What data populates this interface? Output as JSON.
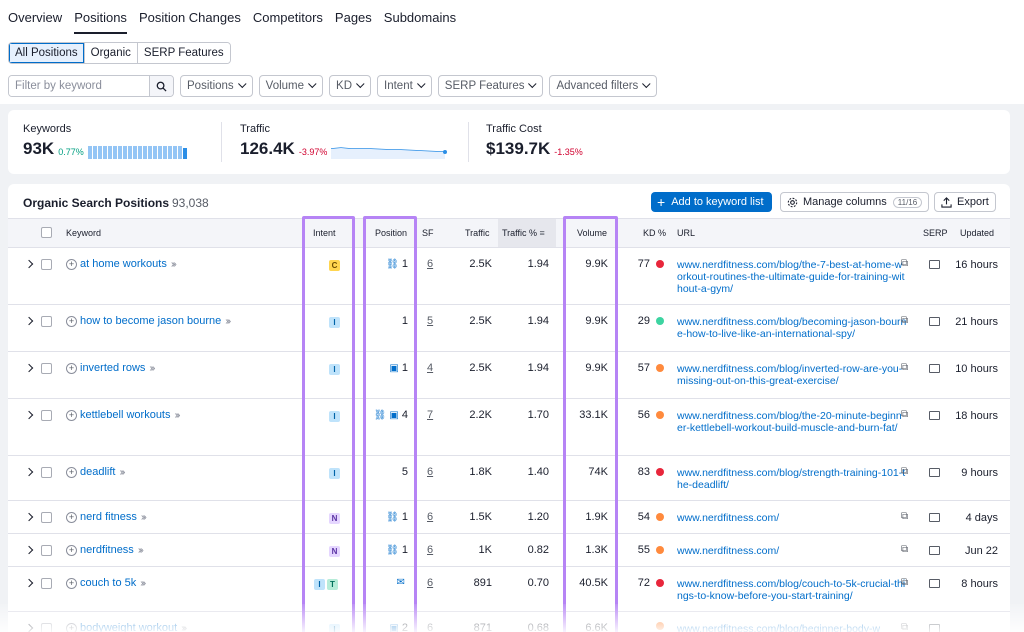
{
  "nav": {
    "tabs": [
      "Overview",
      "Positions",
      "Position Changes",
      "Competitors",
      "Pages",
      "Subdomains"
    ],
    "active": "Positions"
  },
  "segments": [
    "All Positions",
    "Organic",
    "SERP Features"
  ],
  "filters": {
    "search_placeholder": "Filter by keyword",
    "dropdowns": [
      "Positions",
      "Volume",
      "KD",
      "Intent",
      "SERP Features",
      "Advanced filters"
    ]
  },
  "kpis": {
    "keywords": {
      "label": "Keywords",
      "value": "93K",
      "delta": "0.77%"
    },
    "traffic": {
      "label": "Traffic",
      "value": "126.4K",
      "delta": "-3.97%"
    },
    "traffic_cost": {
      "label": "Traffic Cost",
      "value": "$139.7K",
      "delta": "-1.35%"
    }
  },
  "table": {
    "title": "Organic Search Positions",
    "count": "93,038",
    "add_button": "Add to keyword list",
    "manage_button": "Manage columns",
    "manage_count": "11/16",
    "export_button": "Export",
    "columns": {
      "keyword": "Keyword",
      "intent": "Intent",
      "position": "Position",
      "sf": "SF",
      "traffic": "Traffic",
      "traffic_pct": "Traffic %",
      "volume": "Volume",
      "kd": "KD %",
      "url": "URL",
      "serp": "SERP",
      "updated": "Updated"
    },
    "rows": [
      {
        "keyword": "at home workouts",
        "intent": [
          "C"
        ],
        "pos_icons": [
          "link"
        ],
        "position": "1",
        "sf": "6",
        "traffic": "2.5K",
        "traffic_pct": "1.94",
        "volume": "9.9K",
        "kd": "77",
        "kd_color": "#e8263b",
        "url": "www.nerdfitness.com/blog/the-7-best-at-home-workout-routines-the-ultimate-guide-for-training-without-a-gym/",
        "updated": "16 hours"
      },
      {
        "keyword": "how to become jason bourne",
        "intent": [
          "I"
        ],
        "pos_icons": [],
        "position": "1",
        "sf": "5",
        "traffic": "2.5K",
        "traffic_pct": "1.94",
        "volume": "9.9K",
        "kd": "29",
        "kd_color": "#3dd4a1",
        "url": "www.nerdfitness.com/blog/becoming-jason-bourne-how-to-live-like-an-international-spy/",
        "updated": "21 hours"
      },
      {
        "keyword": "inverted rows",
        "intent": [
          "I"
        ],
        "pos_icons": [
          "image"
        ],
        "position": "1",
        "sf": "4",
        "traffic": "2.5K",
        "traffic_pct": "1.94",
        "volume": "9.9K",
        "kd": "57",
        "kd_color": "#ff8a3d",
        "url": "www.nerdfitness.com/blog/inverted-row-are-you-missing-out-on-this-great-exercise/",
        "updated": "10 hours"
      },
      {
        "keyword": "kettlebell workouts",
        "intent": [
          "I"
        ],
        "pos_icons": [
          "link",
          "image"
        ],
        "position": "4",
        "sf": "7",
        "traffic": "2.2K",
        "traffic_pct": "1.70",
        "volume": "33.1K",
        "kd": "56",
        "kd_color": "#ff8a3d",
        "url": "www.nerdfitness.com/blog/the-20-minute-beginner-kettlebell-workout-build-muscle-and-burn-fat/",
        "updated": "18 hours"
      },
      {
        "keyword": "deadlift",
        "intent": [
          "I"
        ],
        "pos_icons": [],
        "position": "5",
        "sf": "6",
        "traffic": "1.8K",
        "traffic_pct": "1.40",
        "volume": "74K",
        "kd": "83",
        "kd_color": "#e8263b",
        "url": "www.nerdfitness.com/blog/strength-training-101-the-deadlift/",
        "updated": "9 hours"
      },
      {
        "keyword": "nerd fitness",
        "intent": [
          "N"
        ],
        "pos_icons": [
          "link"
        ],
        "position": "1",
        "sf": "6",
        "traffic": "1.5K",
        "traffic_pct": "1.20",
        "volume": "1.9K",
        "kd": "54",
        "kd_color": "#ff8a3d",
        "url": "www.nerdfitness.com/",
        "updated": "4 days"
      },
      {
        "keyword": "nerdfitness",
        "intent": [
          "N"
        ],
        "pos_icons": [
          "link"
        ],
        "position": "1",
        "sf": "6",
        "traffic": "1K",
        "traffic_pct": "0.82",
        "volume": "1.3K",
        "kd": "55",
        "kd_color": "#ff8a3d",
        "url": "www.nerdfitness.com/",
        "updated": "Jun 22"
      },
      {
        "keyword": "couch to 5k",
        "intent": [
          "I",
          "T"
        ],
        "pos_icons": [
          "comment"
        ],
        "position": "",
        "sf": "6",
        "traffic": "891",
        "traffic_pct": "0.70",
        "volume": "40.5K",
        "kd": "72",
        "kd_color": "#e8263b",
        "url": "www.nerdfitness.com/blog/couch-to-5k-crucial-things-to-know-before-you-start-training/",
        "updated": "8 hours"
      },
      {
        "keyword": "bodyweight workout",
        "intent": [
          "I"
        ],
        "pos_icons": [
          "image"
        ],
        "position": "2",
        "sf": "6",
        "traffic": "871",
        "traffic_pct": "0.68",
        "volume": "6.6K",
        "kd": "",
        "kd_color": "#ff8a3d",
        "url": "www.nerdfitness.com/blog/beginner-body-w",
        "updated": ""
      }
    ]
  }
}
